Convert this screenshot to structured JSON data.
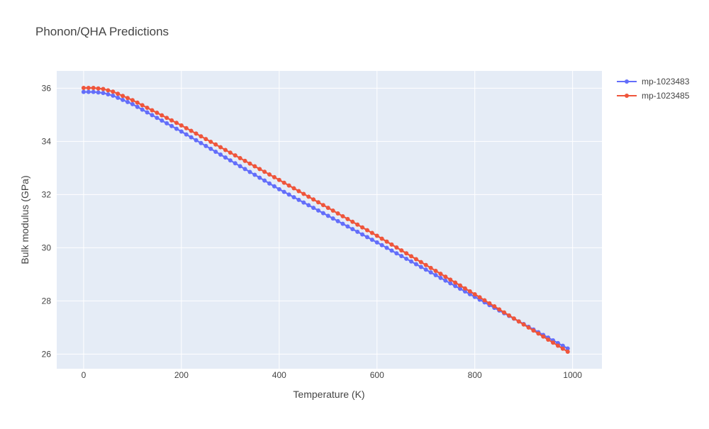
{
  "chart_data": {
    "type": "line",
    "title": "Phonon/QHA Predictions",
    "xlabel": "Temperature (K)",
    "ylabel": "Bulk modulus (GPa)",
    "xlim": [
      -55,
      1060
    ],
    "ylim": [
      25.45,
      36.65
    ],
    "xticks": [
      0,
      200,
      400,
      600,
      800,
      1000
    ],
    "yticks": [
      26,
      28,
      30,
      32,
      34,
      36
    ],
    "xtick_labels": [
      "0",
      "200",
      "400",
      "600",
      "800",
      "1000"
    ],
    "ytick_labels": [
      "26",
      "28",
      "30",
      "32",
      "34",
      "36"
    ],
    "grid": true,
    "legend": "top-right",
    "x_sampling": {
      "start": 0,
      "step": 10,
      "count": 100
    },
    "series": [
      {
        "name": "mp-1023483",
        "color": "#636efa",
        "keypoints": [
          [
            0,
            35.86
          ],
          [
            20,
            35.86
          ],
          [
            40,
            35.82
          ],
          [
            60,
            35.72
          ],
          [
            100,
            35.4
          ],
          [
            200,
            34.37
          ],
          [
            400,
            32.2
          ],
          [
            600,
            30.2
          ],
          [
            800,
            28.15
          ],
          [
            990,
            26.21
          ]
        ]
      },
      {
        "name": "mp-1023485",
        "color": "#ef553b",
        "keypoints": [
          [
            0,
            36.01
          ],
          [
            20,
            36.01
          ],
          [
            40,
            35.97
          ],
          [
            60,
            35.87
          ],
          [
            100,
            35.55
          ],
          [
            200,
            34.6
          ],
          [
            400,
            32.55
          ],
          [
            600,
            30.45
          ],
          [
            800,
            28.25
          ],
          [
            990,
            26.09
          ]
        ]
      }
    ]
  }
}
